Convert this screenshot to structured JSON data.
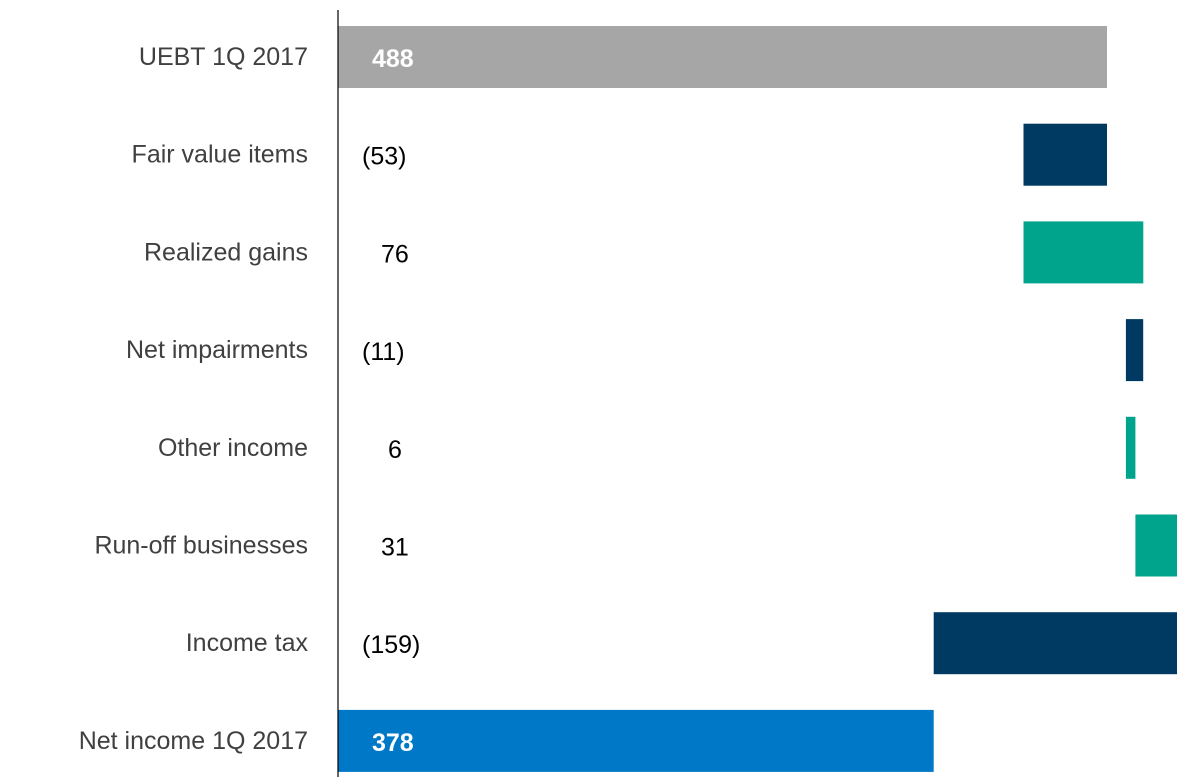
{
  "chart_data": {
    "type": "bar",
    "subtype": "horizontal-waterfall",
    "title": "",
    "xlabel": "",
    "ylabel": "",
    "categories": [
      "UEBT 1Q 2017",
      "Fair value items",
      "Realized gains",
      "Net impairments",
      "Other income",
      "Run-off businesses",
      "Income tax",
      "Net income 1Q 2017"
    ],
    "values": [
      488,
      -53,
      76,
      -11,
      6,
      31,
      -159,
      378
    ],
    "value_labels": [
      "488",
      "(53)",
      "76",
      "(11)",
      "6",
      "31",
      "(159)",
      "378"
    ],
    "bar_kinds": [
      "total",
      "delta",
      "delta",
      "delta",
      "delta",
      "delta",
      "delta",
      "total"
    ],
    "grid": false,
    "legend": "none",
    "colors": {
      "start_total": "#a6a6a6",
      "end_total": "#0078c8",
      "increase": "#00a48c",
      "decrease": "#003a63",
      "axis": "#000000",
      "label_text": "#000000",
      "total_label_text": "#ffffff"
    }
  }
}
